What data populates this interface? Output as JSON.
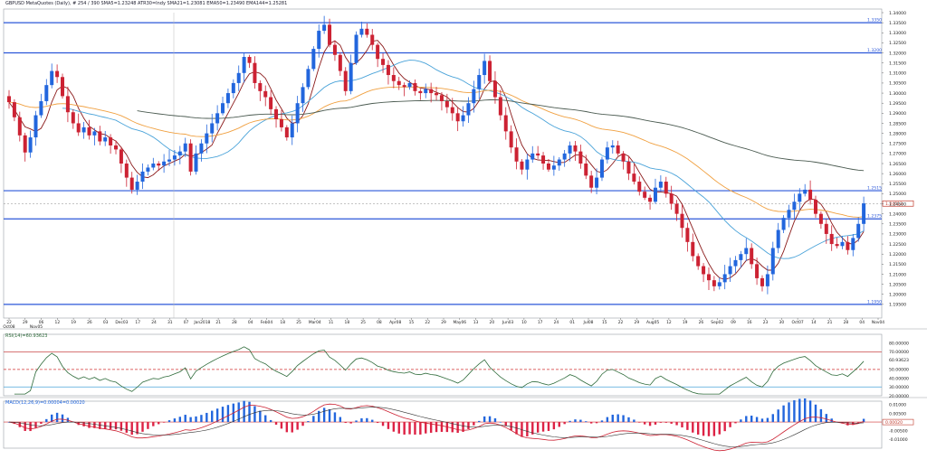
{
  "header": {
    "symbol": "GBPUSD",
    "description": "MetaQuotes (Daily), # 254 / 390",
    "indicators": [
      "SMA5=1.23248",
      "ATR30=Indy",
      "SMA21=1.23081",
      "EMA50=1.23490",
      "EMA144=1.25281"
    ]
  },
  "chart_data": [
    {
      "type": "candlestick",
      "panel": "price",
      "title": "GBPUSD",
      "ylim": [
        1.19,
        1.34
      ],
      "yticks": [
        "1.34000",
        "1.33500",
        "1.33000",
        "1.32500",
        "1.32000",
        "1.31500",
        "1.31000",
        "1.30500",
        "1.30000",
        "1.29500",
        "1.29000",
        "1.28500",
        "1.28000",
        "1.27500",
        "1.27000",
        "1.26500",
        "1.26000",
        "1.25500",
        "1.25000",
        "1.24500",
        "1.24000",
        "1.23500",
        "1.23000",
        "1.22500",
        "1.22000",
        "1.21500",
        "1.21000",
        "1.20500",
        "1.20000",
        "1.19500"
      ],
      "horizontal_levels": [
        {
          "label": "1.3350",
          "value": 1.335,
          "color": "#2b57d9"
        },
        {
          "label": "1.3200",
          "value": 1.32,
          "color": "#2b57d9"
        },
        {
          "label": "1.2515",
          "value": 1.2515,
          "color": "#2b57d9"
        },
        {
          "label": "1.2375",
          "value": 1.2375,
          "color": "#2b57d9"
        },
        {
          "label": "1.1950",
          "value": 1.195,
          "color": "#2b57d9"
        }
      ],
      "current_price": {
        "label": "1.24513",
        "value": 1.24513,
        "color": "#c0392b"
      },
      "close_series": [
        1.2955,
        1.288,
        1.279,
        1.2705,
        1.278,
        1.289,
        1.296,
        1.304,
        1.311,
        1.308,
        1.2985,
        1.2905,
        1.285,
        1.2805,
        1.283,
        1.279,
        1.281,
        1.276,
        1.278,
        1.274,
        1.272,
        1.265,
        1.258,
        1.252,
        1.256,
        1.261,
        1.263,
        1.265,
        1.264,
        1.266,
        1.267,
        1.269,
        1.271,
        1.275,
        1.261,
        1.27,
        1.275,
        1.28,
        1.285,
        1.29,
        1.295,
        1.3,
        1.305,
        1.31,
        1.318,
        1.315,
        1.305,
        1.301,
        1.298,
        1.292,
        1.287,
        1.283,
        1.278,
        1.285,
        1.295,
        1.303,
        1.312,
        1.322,
        1.331,
        1.334,
        1.324,
        1.319,
        1.311,
        1.301,
        1.315,
        1.329,
        1.332,
        1.329,
        1.324,
        1.317,
        1.314,
        1.309,
        1.306,
        1.304,
        1.303,
        1.305,
        1.301,
        1.3,
        1.302,
        1.3,
        1.299,
        1.296,
        1.293,
        1.29,
        1.286,
        1.289,
        1.295,
        1.302,
        1.309,
        1.316,
        1.306,
        1.298,
        1.289,
        1.281,
        1.273,
        1.266,
        1.262,
        1.267,
        1.27,
        1.269,
        1.265,
        1.262,
        1.264,
        1.267,
        1.27,
        1.274,
        1.271,
        1.265,
        1.259,
        1.253,
        1.258,
        1.267,
        1.273,
        1.274,
        1.27,
        1.266,
        1.26,
        1.256,
        1.251,
        1.248,
        1.246,
        1.253,
        1.256,
        1.25,
        1.245,
        1.24,
        1.233,
        1.226,
        1.219,
        1.214,
        1.21,
        1.207,
        1.204,
        1.206,
        1.21,
        1.214,
        1.217,
        1.22,
        1.223,
        1.215,
        1.208,
        1.204,
        1.21,
        1.223,
        1.232,
        1.238,
        1.242,
        1.246,
        1.25,
        1.252,
        1.247,
        1.24,
        1.235,
        1.23,
        1.225,
        1.224,
        1.226,
        1.222,
        1.228,
        1.235,
        1.2452
      ],
      "moving_averages": [
        {
          "name": "SMA5",
          "value": 1.23248,
          "color": "#8b1a1a"
        },
        {
          "name": "SMA21",
          "value": 1.23081,
          "color": "#4aa3d9"
        },
        {
          "name": "EMA50",
          "value": 1.2349,
          "color": "#f0a040"
        },
        {
          "name": "EMA144",
          "value": 1.25281,
          "color": "#4a5a50"
        }
      ],
      "candle_colors": {
        "up": "#2266dd",
        "down": "#cc2233"
      }
    },
    {
      "type": "line",
      "panel": "rsi",
      "title": "RSI(14)=60.93623",
      "ylim": [
        20,
        90
      ],
      "yticks": [
        "80.00000",
        "70.00000",
        "60.93623",
        "50.00000",
        "40.00000",
        "30.00000",
        "20.00000"
      ],
      "levels": [
        {
          "value": 70,
          "color": "#d06060",
          "style": "solid"
        },
        {
          "value": 50,
          "color": "#d03030",
          "style": "dashed"
        },
        {
          "value": 30,
          "color": "#4aa3d9",
          "style": "solid"
        }
      ],
      "current": 60.93623,
      "color": "#2e6b3a"
    },
    {
      "type": "bar+line",
      "panel": "macd",
      "title": "MACD(12,26,9)=0.00004=0.00020",
      "ylim": [
        -0.015,
        0.012
      ],
      "yticks": [
        "0.01000",
        "0.00500",
        "0.00000",
        "-0.00500",
        "-0.01000"
      ],
      "current_label": "0.00020",
      "series_colors": {
        "histogram_pos": "#2266dd",
        "histogram_neg": "#dd2244",
        "macd": "#cc2233",
        "signal": "#333333"
      }
    }
  ],
  "xaxis": {
    "labels": [
      "22",
      "29",
      "06",
      "12",
      "19",
      "26",
      "03",
      "Dec03",
      "17",
      "24",
      "31",
      "07",
      "Jan2018",
      "21",
      "28",
      "04",
      "Feb04",
      "18",
      "25",
      "Mar04",
      "11",
      "18",
      "25",
      "08",
      "Apr08",
      "15",
      "22",
      "29",
      "May06",
      "13",
      "20",
      "Jun03",
      "10",
      "17",
      "24",
      "01",
      "Jul08",
      "15",
      "22",
      "29",
      "Aug05",
      "12",
      "19",
      "26",
      "Sep02",
      "09",
      "16",
      "23",
      "30",
      "Oct07",
      "14",
      "21",
      "28",
      "04",
      "Nov04"
    ],
    "left_labels": [
      "Oct08",
      "Nov05"
    ]
  }
}
